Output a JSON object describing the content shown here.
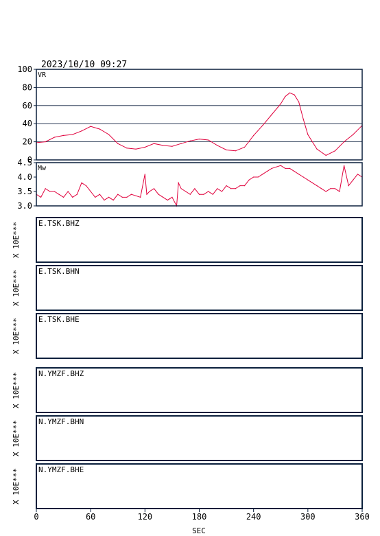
{
  "header": {
    "timestamp": "2023/10/10 09:27"
  },
  "x_axis": {
    "label": "SEC",
    "ticks": [
      0,
      60,
      120,
      180,
      240,
      300,
      360
    ],
    "range": [
      0,
      360
    ]
  },
  "colors": {
    "trace": "#e0003c",
    "frame": "#0a1f3c",
    "text": "#000000"
  },
  "chart_data": [
    {
      "type": "line",
      "panel": "VR",
      "label": "VR",
      "ylim": [
        0,
        100
      ],
      "yticks": [
        0,
        20,
        40,
        60,
        80,
        100
      ],
      "grid": true,
      "x": [
        0,
        10,
        20,
        30,
        40,
        50,
        60,
        70,
        80,
        90,
        100,
        110,
        120,
        130,
        140,
        150,
        160,
        170,
        180,
        190,
        200,
        210,
        220,
        230,
        240,
        250,
        260,
        270,
        275,
        280,
        285,
        290,
        295,
        300,
        310,
        320,
        330,
        340,
        350,
        360
      ],
      "values": [
        19,
        20,
        25,
        27,
        28,
        32,
        37,
        34,
        28,
        18,
        13,
        12,
        14,
        18,
        16,
        15,
        18,
        21,
        23,
        22,
        16,
        11,
        10,
        14,
        27,
        38,
        50,
        62,
        70,
        74,
        72,
        64,
        45,
        28,
        12,
        5,
        10,
        20,
        28,
        38
      ]
    },
    {
      "type": "line",
      "panel": "Mw",
      "label": "Mw",
      "ylim": [
        3.0,
        4.5
      ],
      "yticks": [
        3.0,
        3.5,
        4.0,
        4.5
      ],
      "grid": false,
      "x": [
        0,
        5,
        10,
        15,
        20,
        25,
        30,
        35,
        40,
        45,
        50,
        55,
        60,
        65,
        70,
        75,
        80,
        85,
        90,
        95,
        100,
        105,
        110,
        115,
        120,
        122,
        125,
        130,
        135,
        140,
        145,
        150,
        155,
        157,
        160,
        165,
        170,
        175,
        180,
        185,
        190,
        195,
        200,
        205,
        210,
        215,
        220,
        225,
        230,
        235,
        240,
        245,
        250,
        255,
        260,
        265,
        270,
        275,
        280,
        285,
        290,
        295,
        300,
        305,
        310,
        315,
        320,
        325,
        330,
        335,
        340,
        345,
        350,
        355,
        360
      ],
      "values": [
        3.4,
        3.3,
        3.6,
        3.5,
        3.5,
        3.4,
        3.3,
        3.5,
        3.3,
        3.4,
        3.8,
        3.7,
        3.5,
        3.3,
        3.4,
        3.2,
        3.3,
        3.2,
        3.4,
        3.3,
        3.3,
        3.4,
        3.35,
        3.3,
        4.1,
        3.4,
        3.5,
        3.6,
        3.4,
        3.3,
        3.2,
        3.3,
        3.0,
        3.8,
        3.6,
        3.5,
        3.4,
        3.6,
        3.4,
        3.4,
        3.5,
        3.4,
        3.6,
        3.5,
        3.7,
        3.6,
        3.6,
        3.7,
        3.7,
        3.9,
        4.0,
        4.0,
        4.1,
        4.2,
        4.3,
        4.35,
        4.4,
        4.3,
        4.3,
        4.2,
        4.1,
        4.0,
        3.9,
        3.8,
        3.7,
        3.6,
        3.5,
        3.6,
        3.6,
        3.5,
        4.4,
        3.7,
        3.9,
        4.1,
        4.0
      ]
    }
  ],
  "stations": [
    {
      "label": "E.TSK.BHZ",
      "scale": "X 10E***"
    },
    {
      "label": "E.TSK.BHN",
      "scale": "X 10E***"
    },
    {
      "label": "E.TSK.BHE",
      "scale": "X 10E***"
    },
    {
      "label": "N.YMZF.BHZ",
      "scale": "X 10E***"
    },
    {
      "label": "N.YMZF.BHN",
      "scale": "X 10E***"
    },
    {
      "label": "N.YMZF.BHE",
      "scale": "X 10E***"
    }
  ]
}
